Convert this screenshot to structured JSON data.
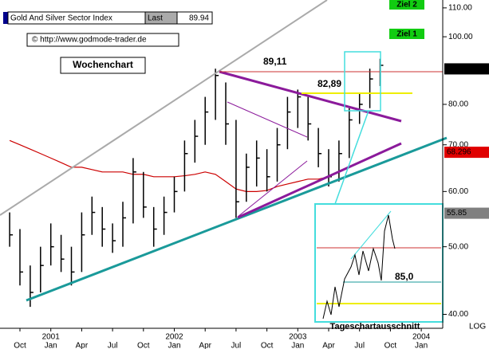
{
  "chart_data": {
    "type": "ohlc",
    "title": "Gold And Silver Sector Index",
    "last_label": "Last",
    "last_value": "89.94",
    "copyright": "© http://www.godmode-trader.de",
    "chart_label": "Wochenchart",
    "inset_label": "Tageschartausschnitt",
    "annotations": [
      "89,11",
      "82,89",
      "85,0"
    ],
    "targets": [
      "Ziel 2",
      "Ziel 1"
    ],
    "scale_label": "LOG",
    "log": true,
    "x": [
      "2000-09",
      "2000-10",
      "2000-11",
      "2000-12",
      "2001-01",
      "2001-02",
      "2001-03",
      "2001-04",
      "2001-05",
      "2001-06",
      "2001-07",
      "2001-08",
      "2001-09",
      "2001-10",
      "2001-11",
      "2001-12",
      "2002-01",
      "2002-02",
      "2002-03",
      "2002-04",
      "2002-05",
      "2002-06",
      "2002-07",
      "2002-08",
      "2002-09",
      "2002-10",
      "2002-11",
      "2002-12",
      "2003-01",
      "2003-02",
      "2003-03",
      "2003-04",
      "2003-05",
      "2003-06",
      "2003-07",
      "2003-08",
      "2003-09"
    ],
    "series": [
      {
        "color": "#000000",
        "high": [
          56,
          53,
          47,
          50,
          54,
          52,
          50,
          56,
          59,
          57,
          54,
          58,
          67,
          64,
          57,
          59,
          63,
          71,
          76,
          82,
          90,
          86,
          76,
          68,
          71,
          69,
          74,
          82,
          84,
          82,
          74,
          69,
          71,
          79,
          83,
          90,
          93
        ],
        "low": [
          50,
          44,
          41,
          43,
          47,
          46,
          44,
          46,
          52,
          50,
          49,
          50,
          54,
          55,
          50,
          52,
          56,
          60,
          66,
          70,
          76,
          70,
          55,
          58,
          61,
          60,
          62,
          69,
          74,
          71,
          65,
          61,
          62,
          67,
          75,
          79,
          85
        ],
        "close": [
          52,
          46,
          43,
          47,
          50,
          48,
          46,
          52,
          56,
          53,
          51,
          55,
          64,
          57,
          53,
          56,
          60,
          68,
          72,
          78,
          88,
          75,
          58,
          65,
          67,
          63,
          70,
          78,
          82,
          75,
          68,
          63,
          68,
          76,
          80,
          87,
          91
        ]
      }
    ],
    "ma": {
      "color": "#cc0000",
      "values": [
        71,
        70,
        69,
        68,
        67,
        66,
        65,
        65,
        64.5,
        64,
        64,
        64,
        63.5,
        63.5,
        63,
        63,
        63,
        63.2,
        63.5,
        64,
        63.5,
        62,
        60.5,
        60,
        60,
        60.2,
        61,
        61.5,
        62,
        62.5,
        62.5,
        63,
        64,
        65,
        66,
        67,
        68.3
      ]
    },
    "value_boxes": [
      {
        "value": 89.94,
        "label": "89.94",
        "color": "#000000"
      },
      {
        "value": 68.296,
        "label": "68.296",
        "color": "#e00000"
      },
      {
        "value": 55.85,
        "label": "55.85",
        "color": "#808080"
      }
    ],
    "ylim": [
      38.2,
      112.9
    ],
    "yticks": [
      {
        "value": 40,
        "label": "40.00"
      },
      {
        "value": 50,
        "label": "50.00"
      },
      {
        "value": 60,
        "label": "60.00"
      },
      {
        "value": 70,
        "label": "70.00"
      },
      {
        "value": 80,
        "label": "80.00"
      },
      {
        "value": 100,
        "label": "100.00"
      },
      {
        "value": 110,
        "label": "110.00"
      }
    ],
    "xticks": [
      {
        "value": "2000-10",
        "label": "Oct"
      },
      {
        "value": "2001-01",
        "label": "Jan"
      },
      {
        "value": "2001-04",
        "label": "Apr"
      },
      {
        "value": "2001-07",
        "label": "Jul"
      },
      {
        "value": "2001-10",
        "label": "Oct"
      },
      {
        "value": "2002-01",
        "label": "Jan"
      },
      {
        "value": "2002-04",
        "label": "Apr"
      },
      {
        "value": "2002-07",
        "label": "Jul"
      },
      {
        "value": "2002-10",
        "label": "Oct"
      },
      {
        "value": "2003-01",
        "label": "Jan"
      },
      {
        "value": "2003-04",
        "label": "Apr"
      },
      {
        "value": "2003-07",
        "label": "Jul"
      },
      {
        "value": "2003-10",
        "label": "Oct"
      },
      {
        "value": "2004-01",
        "label": "Jan"
      }
    ],
    "xyears": [
      {
        "value": "2001-01",
        "label": "2001"
      },
      {
        "value": "2002-01",
        "label": "2002"
      },
      {
        "value": "2003-01",
        "label": "2003"
      },
      {
        "value": "2004-01",
        "label": "2004"
      }
    ]
  }
}
